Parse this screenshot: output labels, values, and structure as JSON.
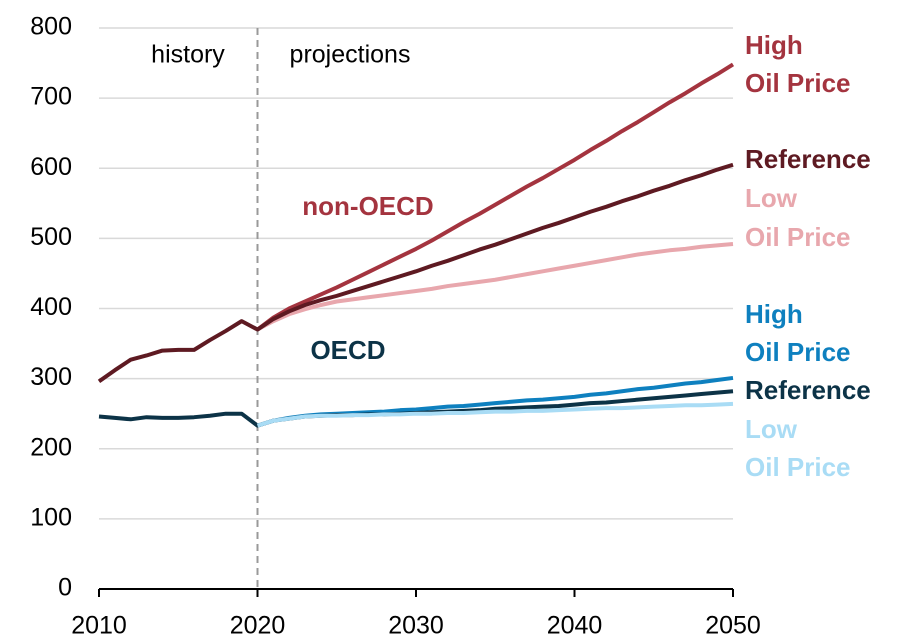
{
  "chart_data": {
    "type": "line",
    "x": [
      2010,
      2011,
      2012,
      2013,
      2014,
      2015,
      2016,
      2017,
      2018,
      2019,
      2020,
      2021,
      2022,
      2023,
      2024,
      2025,
      2026,
      2027,
      2028,
      2029,
      2030,
      2031,
      2032,
      2033,
      2034,
      2035,
      2036,
      2037,
      2038,
      2039,
      2040,
      2041,
      2042,
      2043,
      2044,
      2045,
      2046,
      2047,
      2048,
      2049,
      2050
    ],
    "xlim": [
      2010,
      2050
    ],
    "xticks": [
      2010,
      2020,
      2030,
      2040,
      2050
    ],
    "ylim": [
      0,
      800
    ],
    "yticks": [
      0,
      100,
      200,
      300,
      400,
      500,
      600,
      700,
      800
    ],
    "grid": true,
    "annotations": [
      "history",
      "projections",
      "non-OECD",
      "OECD"
    ],
    "series": [
      {
        "label_lines": [
          "Low",
          "Oil Price"
        ],
        "color": "#e8a7ad",
        "values": [
          null,
          null,
          null,
          null,
          null,
          null,
          null,
          null,
          null,
          null,
          370,
          382,
          392,
          399,
          405,
          410,
          413,
          416,
          419,
          422,
          425,
          428,
          432,
          435,
          438,
          441,
          445,
          449,
          453,
          457,
          461,
          465,
          469,
          473,
          477,
          480,
          483,
          485,
          488,
          490,
          492
        ]
      },
      {
        "label_lines": [
          "High",
          "Oil Price"
        ],
        "color": "#a4343f",
        "values": [
          null,
          null,
          null,
          null,
          null,
          null,
          null,
          null,
          null,
          null,
          370,
          387,
          400,
          410,
          420,
          430,
          441,
          452,
          463,
          474,
          485,
          497,
          510,
          523,
          535,
          548,
          561,
          574,
          586,
          599,
          612,
          626,
          639,
          653,
          666,
          680,
          694,
          707,
          721,
          734,
          748
        ]
      },
      {
        "label_lines": [
          "Reference"
        ],
        "color": "#5e1a22",
        "values": [
          296,
          312,
          327,
          333,
          340,
          341,
          341,
          355,
          368,
          382,
          370,
          385,
          396,
          405,
          412,
          418,
          425,
          432,
          439,
          446,
          453,
          461,
          468,
          476,
          484,
          491,
          499,
          507,
          515,
          522,
          530,
          538,
          545,
          553,
          560,
          568,
          575,
          583,
          590,
          598,
          605
        ]
      },
      {
        "label_lines": [
          "High",
          "Oil Price"
        ],
        "color": "#0e80bf",
        "values": [
          null,
          null,
          null,
          null,
          null,
          null,
          null,
          null,
          null,
          null,
          233,
          240,
          244,
          247,
          249,
          250,
          251,
          252,
          253,
          255,
          256,
          258,
          260,
          261,
          263,
          265,
          267,
          269,
          270,
          272,
          274,
          277,
          279,
          282,
          285,
          287,
          290,
          293,
          295,
          298,
          301
        ]
      },
      {
        "label_lines": [
          "Reference"
        ],
        "color": "#0c3347",
        "values": [
          246,
          244,
          242,
          245,
          244,
          244,
          245,
          247,
          250,
          250,
          233,
          240,
          243,
          246,
          247,
          248,
          248,
          249,
          249,
          250,
          251,
          252,
          253,
          254,
          255,
          257,
          258,
          259,
          260,
          261,
          263,
          265,
          266,
          268,
          270,
          272,
          274,
          276,
          278,
          280,
          282
        ]
      },
      {
        "label_lines": [
          "Low",
          "Oil Price"
        ],
        "color": "#a9dcf5",
        "values": [
          null,
          null,
          null,
          null,
          null,
          null,
          null,
          null,
          null,
          null,
          233,
          240,
          243,
          246,
          247,
          247,
          248,
          248,
          249,
          249,
          250,
          250,
          251,
          251,
          252,
          253,
          253,
          254,
          254,
          255,
          256,
          257,
          258,
          258,
          259,
          260,
          261,
          262,
          262,
          263,
          264
        ]
      }
    ]
  }
}
